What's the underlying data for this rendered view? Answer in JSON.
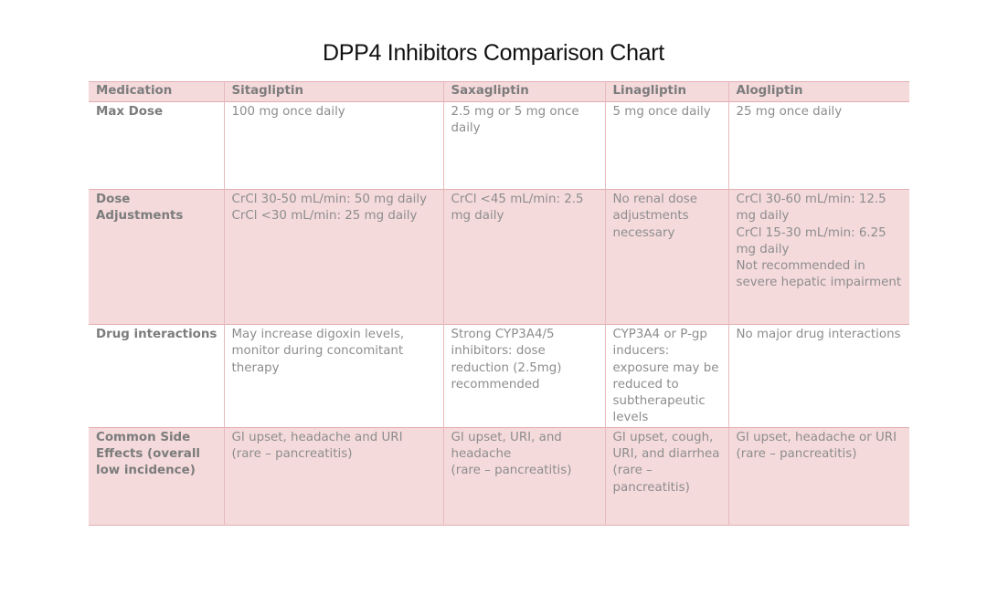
{
  "title": "DPP4 Inhibitors Comparison Chart",
  "headers": [
    "Medication",
    "Sitagliptin",
    "Saxagliptin",
    "Linagliptin",
    "Alogliptin"
  ],
  "rows": [
    {
      "label": "Max Dose",
      "cells": [
        "100 mg once daily",
        "2.5 mg or 5 mg once daily",
        "5 mg once daily",
        "25 mg once daily"
      ]
    },
    {
      "label": "Dose Adjustments",
      "cells": [
        "CrCl 30-50 mL/min: 50 mg daily\nCrCl <30 mL/min: 25 mg daily",
        "CrCl <45 mL/min: 2.5 mg daily",
        "No renal dose adjustments necessary",
        "CrCl 30-60 mL/min: 12.5 mg daily\nCrCl 15-30 mL/min: 6.25 mg daily\nNot recommended in severe hepatic impairment"
      ]
    },
    {
      "label": "Drug interactions",
      "cells": [
        "May increase digoxin levels, monitor during concomitant therapy",
        "Strong CYP3A4/5 inhibitors: dose reduction (2.5mg) recommended",
        "CYP3A4 or P-gp inducers: exposure may be reduced to subtherapeutic levels",
        "No major drug interactions"
      ]
    },
    {
      "label": "Common Side Effects (overall low incidence)",
      "cells": [
        "GI upset, headache and URI\n(rare – pancreatitis)",
        "GI upset, URI, and headache\n(rare – pancreatitis)",
        "GI upset, cough, URI, and diarrhea\n(rare – pancreatitis)",
        "GI upset, headache or URI\n(rare – pancreatitis)"
      ]
    }
  ]
}
